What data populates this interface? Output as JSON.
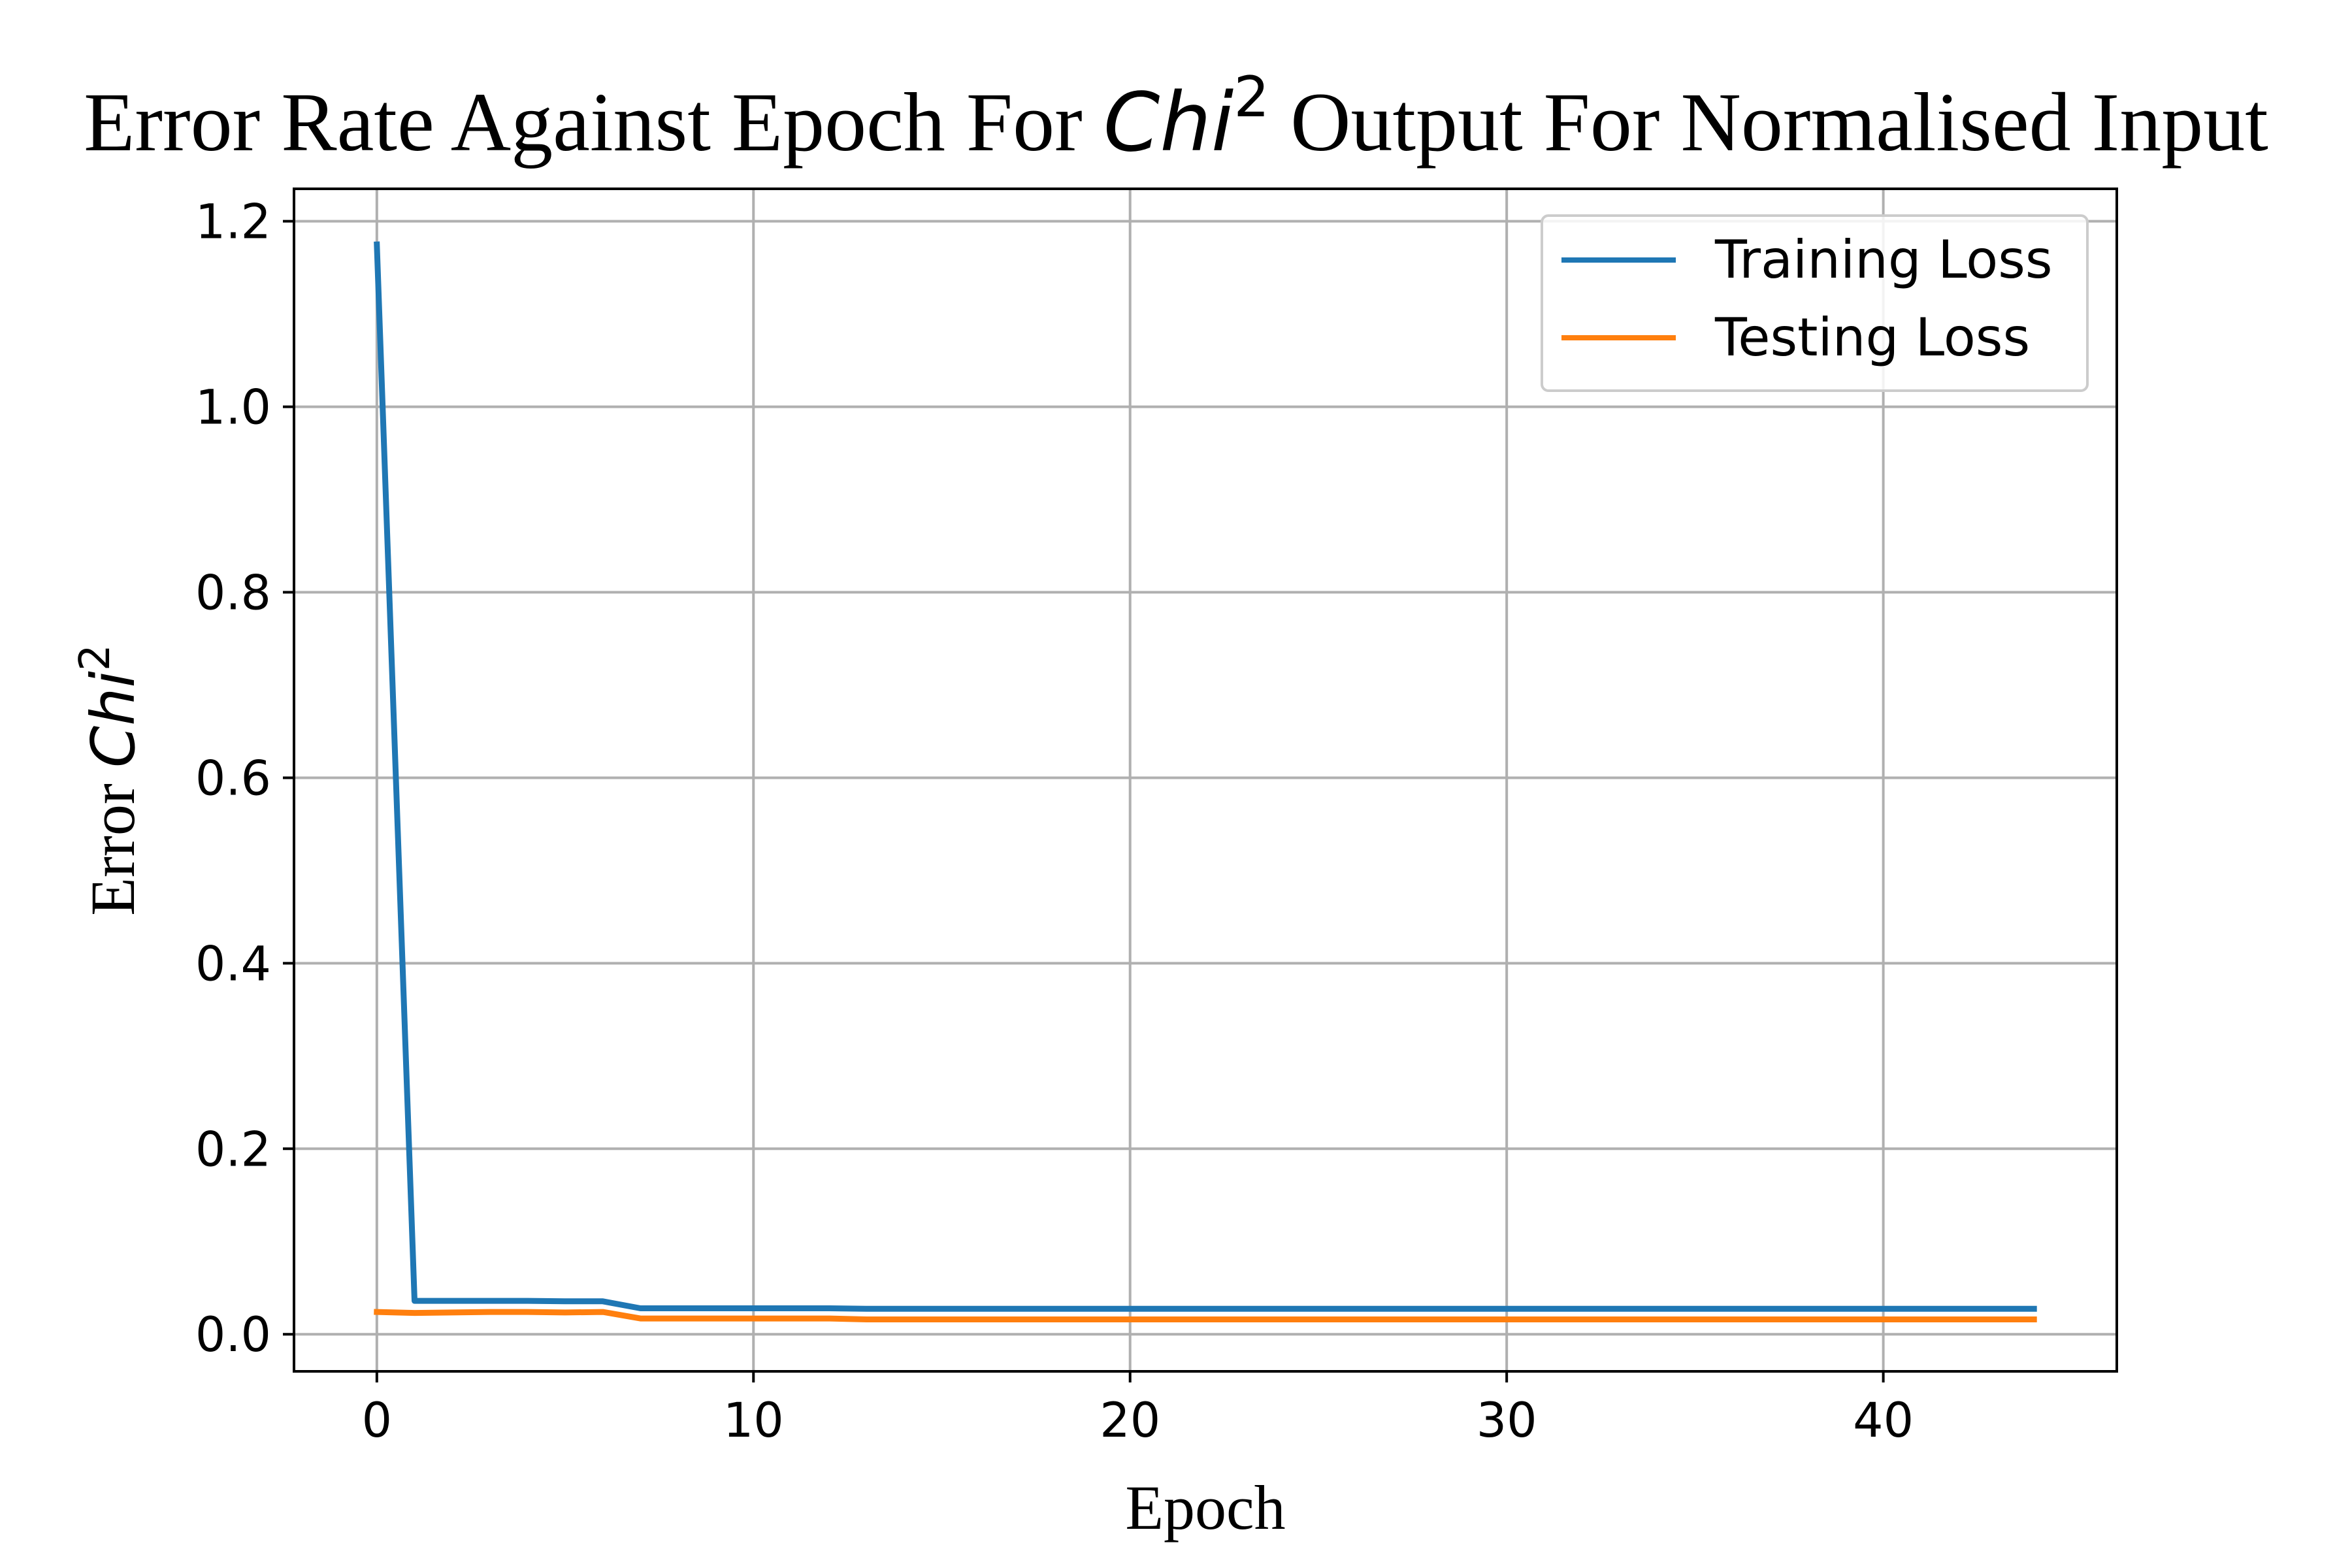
{
  "chart_data": {
    "type": "line",
    "title": {
      "prefix": "Error Rate Against Epoch For ",
      "math": "Chi",
      "sup": "2",
      "suffix": " Output For Normalised Input"
    },
    "xlabel": "Epoch",
    "ylabel": {
      "prefix": "Error ",
      "math": "Chi",
      "sup": "2"
    },
    "xlim": [
      -2.2,
      46.2
    ],
    "ylim": [
      -0.04,
      1.235
    ],
    "x_ticks": [
      0,
      10,
      20,
      30,
      40
    ],
    "y_ticks": [
      0.0,
      0.2,
      0.4,
      0.6,
      0.8,
      1.0,
      1.2
    ],
    "x_tick_labels": [
      "0",
      "10",
      "20",
      "30",
      "40"
    ],
    "y_tick_labels": [
      "0.0",
      "0.2",
      "0.4",
      "0.6",
      "0.8",
      "1.0",
      "1.2"
    ],
    "grid": true,
    "legend_position": "top-right",
    "x": [
      0,
      1,
      2,
      3,
      4,
      5,
      6,
      7,
      8,
      9,
      10,
      11,
      12,
      13,
      14,
      15,
      16,
      17,
      18,
      19,
      20,
      21,
      22,
      23,
      24,
      25,
      26,
      27,
      28,
      29,
      30,
      31,
      32,
      33,
      34,
      35,
      36,
      37,
      38,
      39,
      40,
      41,
      42,
      43,
      44
    ],
    "series": [
      {
        "name": "Training Loss",
        "color": "#1f77b4",
        "values": [
          1.175,
          0.036,
          0.036,
          0.036,
          0.036,
          0.0355,
          0.0355,
          0.028,
          0.028,
          0.028,
          0.028,
          0.028,
          0.028,
          0.0275,
          0.0275,
          0.0275,
          0.0275,
          0.0275,
          0.0275,
          0.0275,
          0.0275,
          0.0275,
          0.0275,
          0.0275,
          0.0275,
          0.0275,
          0.0275,
          0.0275,
          0.0275,
          0.0275,
          0.0275,
          0.0275,
          0.0275,
          0.0275,
          0.0275,
          0.0275,
          0.0275,
          0.0275,
          0.0275,
          0.0275,
          0.0275,
          0.0275,
          0.0275,
          0.0275,
          0.0275
        ]
      },
      {
        "name": "Testing Loss",
        "color": "#ff7f0e",
        "values": [
          0.024,
          0.023,
          0.0235,
          0.024,
          0.024,
          0.0235,
          0.024,
          0.017,
          0.017,
          0.017,
          0.017,
          0.017,
          0.017,
          0.016,
          0.016,
          0.016,
          0.016,
          0.016,
          0.016,
          0.016,
          0.016,
          0.016,
          0.016,
          0.016,
          0.016,
          0.016,
          0.016,
          0.016,
          0.016,
          0.016,
          0.016,
          0.016,
          0.016,
          0.016,
          0.016,
          0.016,
          0.016,
          0.016,
          0.016,
          0.016,
          0.016,
          0.016,
          0.016,
          0.016,
          0.016
        ]
      }
    ]
  }
}
